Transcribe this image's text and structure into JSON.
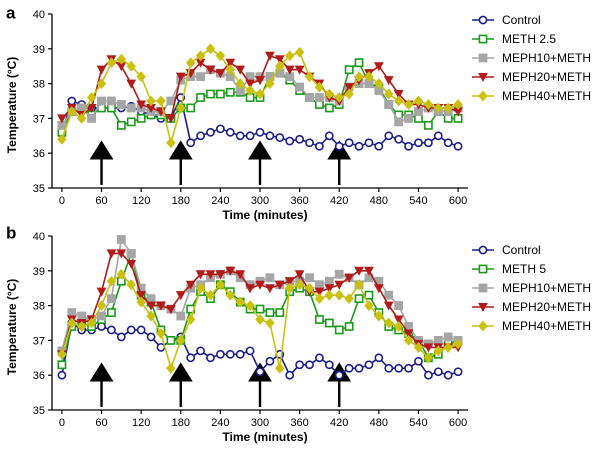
{
  "chart_data": [
    {
      "type": "line",
      "panel_label": "a",
      "xlabel": "Time (minutes)",
      "ylabel": "Temperature (°C)",
      "xlim": [
        -15,
        615
      ],
      "ylim": [
        35,
        40
      ],
      "x_ticks": [
        0,
        60,
        120,
        180,
        240,
        300,
        360,
        420,
        480,
        540,
        600
      ],
      "y_ticks": [
        35,
        36,
        37,
        38,
        39,
        40
      ],
      "arrows_at": [
        60,
        180,
        300,
        420
      ],
      "x": [
        0,
        15,
        30,
        45,
        60,
        75,
        90,
        105,
        120,
        135,
        150,
        165,
        180,
        195,
        210,
        225,
        240,
        255,
        270,
        285,
        300,
        315,
        330,
        345,
        360,
        375,
        390,
        405,
        420,
        435,
        450,
        465,
        480,
        495,
        510,
        525,
        540,
        555,
        570,
        585,
        600
      ],
      "series": [
        {
          "name": "Control",
          "color": "#1c1c8c",
          "marker": "circle",
          "values": [
            36.6,
            37.5,
            37.4,
            37.3,
            37.3,
            37.3,
            37.3,
            37.35,
            37.2,
            37.1,
            37.0,
            37.0,
            37.6,
            36.3,
            36.5,
            36.6,
            36.7,
            36.6,
            36.5,
            36.5,
            36.6,
            36.5,
            36.45,
            36.35,
            36.4,
            36.3,
            36.2,
            36.5,
            36.2,
            36.3,
            36.2,
            36.3,
            36.2,
            36.5,
            36.4,
            36.2,
            36.3,
            36.3,
            36.5,
            36.3,
            36.2
          ]
        },
        {
          "name": "METH 2.5",
          "color": "#1a9a1a",
          "marker": "square",
          "values": [
            36.6,
            37.2,
            37.3,
            37.1,
            37.3,
            37.3,
            36.8,
            36.9,
            37.0,
            37.1,
            37.1,
            37.0,
            37.3,
            37.3,
            37.6,
            37.7,
            37.7,
            37.75,
            37.75,
            37.6,
            37.6,
            38.2,
            38.3,
            38.1,
            37.8,
            37.6,
            37.4,
            37.3,
            37.4,
            38.4,
            38.6,
            38.0,
            37.9,
            37.4,
            37.1,
            37.1,
            37.0,
            36.8,
            37.2,
            37.0,
            37.0
          ]
        },
        {
          "name": "MEPH10+METH",
          "color": "#a6a6a6",
          "marker": "square",
          "values": [
            36.8,
            37.2,
            37.3,
            37.0,
            37.5,
            37.5,
            37.4,
            37.3,
            37.3,
            37.2,
            37.2,
            37.5,
            38.1,
            38.2,
            38.2,
            38.4,
            38.3,
            38.2,
            37.8,
            38.2,
            38.2,
            38.2,
            38.3,
            38.2,
            37.9,
            37.6,
            37.6,
            37.6,
            37.5,
            37.9,
            38.0,
            38.0,
            37.8,
            37.4,
            36.9,
            37.0,
            37.2,
            37.3,
            37.2,
            37.2,
            37.3
          ]
        },
        {
          "name": "MEPH20+METH",
          "color": "#b21a1a",
          "marker": "triangle-down",
          "values": [
            37.0,
            37.3,
            37.1,
            37.3,
            38.4,
            38.7,
            38.5,
            38.0,
            37.4,
            37.3,
            37.2,
            37.0,
            38.2,
            38.3,
            38.6,
            38.4,
            38.3,
            38.6,
            38.4,
            38.0,
            38.1,
            38.8,
            38.7,
            38.4,
            38.4,
            38.2,
            38.0,
            37.6,
            37.5,
            37.9,
            38.1,
            38.3,
            38.5,
            38.1,
            37.7,
            37.4,
            37.4,
            37.3,
            37.3,
            37.3,
            37.2
          ]
        },
        {
          "name": "MEPH40+METH",
          "color": "#c9c10e",
          "marker": "diamond",
          "values": [
            36.4,
            37.2,
            37.0,
            37.6,
            38.0,
            38.6,
            38.7,
            38.5,
            38.2,
            37.5,
            37.5,
            36.3,
            37.3,
            38.6,
            38.8,
            39.0,
            38.8,
            38.4,
            38.0,
            37.8,
            37.7,
            38.0,
            38.5,
            38.8,
            38.9,
            38.2,
            37.9,
            37.7,
            37.6,
            37.7,
            38.2,
            38.2,
            38.0,
            37.7,
            37.5,
            37.4,
            37.5,
            37.4,
            37.3,
            37.3,
            37.4
          ]
        }
      ]
    },
    {
      "type": "line",
      "panel_label": "b",
      "xlabel": "Time (minutes)",
      "ylabel": "Temperature (°C)",
      "xlim": [
        -15,
        615
      ],
      "ylim": [
        35,
        40
      ],
      "x_ticks": [
        0,
        60,
        120,
        180,
        240,
        300,
        360,
        420,
        480,
        540,
        600
      ],
      "y_ticks": [
        35,
        36,
        37,
        38,
        39,
        40
      ],
      "arrows_at": [
        60,
        180,
        300,
        420
      ],
      "x": [
        0,
        15,
        30,
        45,
        60,
        75,
        90,
        105,
        120,
        135,
        150,
        165,
        180,
        195,
        210,
        225,
        240,
        255,
        270,
        285,
        300,
        315,
        330,
        345,
        360,
        375,
        390,
        405,
        420,
        435,
        450,
        465,
        480,
        495,
        510,
        525,
        540,
        555,
        570,
        585,
        600
      ],
      "series": [
        {
          "name": "Control",
          "color": "#1c1c8c",
          "marker": "circle",
          "values": [
            36.0,
            37.5,
            37.3,
            37.3,
            37.4,
            37.3,
            37.1,
            37.3,
            37.3,
            37.1,
            36.8,
            37.0,
            37.1,
            36.5,
            36.7,
            36.5,
            36.6,
            36.6,
            36.6,
            36.7,
            36.1,
            36.4,
            36.6,
            36.0,
            36.3,
            36.3,
            36.5,
            36.3,
            36.0,
            36.2,
            36.2,
            36.3,
            36.5,
            36.2,
            36.2,
            36.2,
            36.4,
            36.0,
            36.1,
            36.0,
            36.1
          ]
        },
        {
          "name": "METH 5",
          "color": "#1a9a1a",
          "marker": "square",
          "values": [
            36.3,
            37.4,
            37.5,
            37.4,
            37.6,
            37.8,
            38.7,
            39.5,
            38.3,
            38.1,
            37.3,
            37.0,
            37.0,
            37.9,
            38.4,
            38.2,
            38.6,
            38.4,
            38.1,
            37.9,
            37.9,
            37.8,
            37.8,
            38.4,
            38.5,
            38.4,
            37.6,
            37.5,
            37.3,
            37.4,
            38.2,
            38.3,
            37.8,
            37.4,
            37.3,
            37.2,
            37.0,
            36.5,
            36.6,
            36.9,
            37.0
          ]
        },
        {
          "name": "MEPH10+METH",
          "color": "#a6a6a6",
          "marker": "square",
          "values": [
            36.7,
            37.8,
            37.7,
            37.6,
            37.7,
            38.2,
            39.9,
            39.5,
            38.5,
            38.2,
            38.0,
            37.9,
            37.7,
            38.5,
            38.6,
            38.8,
            38.9,
            39.0,
            38.8,
            38.6,
            38.7,
            38.8,
            38.6,
            38.7,
            38.7,
            38.8,
            38.6,
            38.7,
            38.9,
            38.8,
            38.6,
            38.8,
            38.7,
            38.3,
            38.0,
            37.4,
            37.0,
            36.9,
            37.0,
            37.1,
            37.0
          ]
        },
        {
          "name": "MEPH20+METH",
          "color": "#b21a1a",
          "marker": "triangle-down",
          "values": [
            36.6,
            37.6,
            37.5,
            37.6,
            38.4,
            39.5,
            39.5,
            39.2,
            38.3,
            38.0,
            38.0,
            37.9,
            38.3,
            38.6,
            38.9,
            38.9,
            38.9,
            39.0,
            38.9,
            38.5,
            38.6,
            38.5,
            38.6,
            38.7,
            38.9,
            38.4,
            38.4,
            38.5,
            38.6,
            38.8,
            39.0,
            39.0,
            38.5,
            38.0,
            37.6,
            37.2,
            36.9,
            36.8,
            36.8,
            36.8,
            36.8
          ]
        },
        {
          "name": "MEPH40+METH",
          "color": "#c9c10e",
          "marker": "diamond",
          "values": [
            36.6,
            37.5,
            37.4,
            37.5,
            38.0,
            38.7,
            38.9,
            38.6,
            38.1,
            37.7,
            37.2,
            36.2,
            37.0,
            37.6,
            38.5,
            38.3,
            38.6,
            38.3,
            38.1,
            38.0,
            37.6,
            37.5,
            36.2,
            38.5,
            38.6,
            38.5,
            38.2,
            38.3,
            38.3,
            38.2,
            38.6,
            38.0,
            37.7,
            37.5,
            37.4,
            37.0,
            36.8,
            36.5,
            36.7,
            36.8,
            36.9
          ]
        }
      ]
    }
  ]
}
